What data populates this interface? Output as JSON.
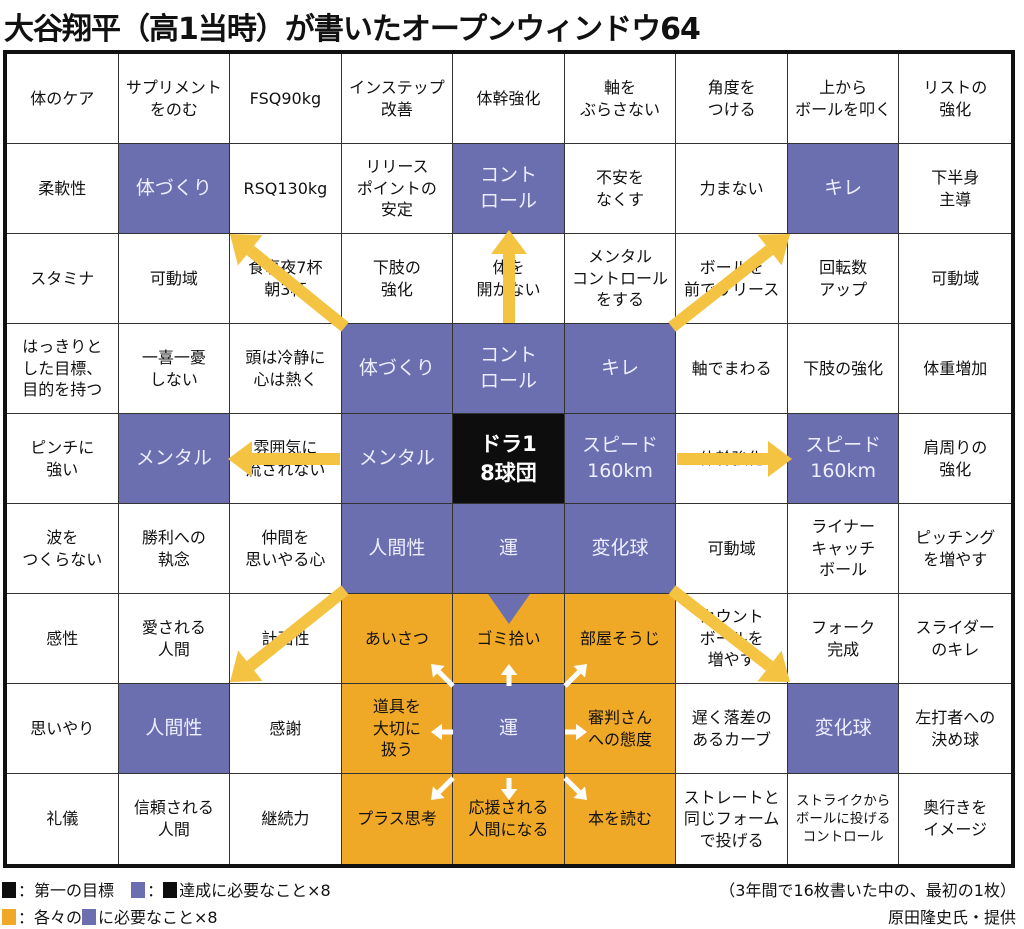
{
  "title": "大谷翔平（高1当時）が書いたオープンウィンドウ64",
  "colors": {
    "blue": "#6b6fb0",
    "black": "#0d0d0d",
    "orange": "#f0a827",
    "arrow": "#f5c342"
  },
  "grid": [
    [
      [
        "体のケア",
        "w"
      ],
      [
        "サプリメント\nをのむ",
        "w"
      ],
      [
        "FSQ90kg",
        "w"
      ],
      [
        "インステップ\n改善",
        "w"
      ],
      [
        "体幹強化",
        "w"
      ],
      [
        "軸を\nぶらさない",
        "w"
      ],
      [
        "角度を\nつける",
        "w"
      ],
      [
        "上から\nボールを叩く",
        "w"
      ],
      [
        "リストの\n強化",
        "w"
      ]
    ],
    [
      [
        "柔軟性",
        "w"
      ],
      [
        "体づくり",
        "b"
      ],
      [
        "RSQ130kg",
        "w"
      ],
      [
        "リリース\nポイントの\n安定",
        "w"
      ],
      [
        "コント\nロール",
        "b"
      ],
      [
        "不安を\nなくす",
        "w"
      ],
      [
        "力まない",
        "w"
      ],
      [
        "キレ",
        "b"
      ],
      [
        "下半身\n主導",
        "w"
      ]
    ],
    [
      [
        "スタミナ",
        "w"
      ],
      [
        "可動域",
        "w"
      ],
      [
        "食事夜7杯\n朝3杯",
        "w"
      ],
      [
        "下肢の\n強化",
        "w"
      ],
      [
        "体を\n開かない",
        "w"
      ],
      [
        "メンタル\nコントロール\nをする",
        "w"
      ],
      [
        "ボールを\n前でリリース",
        "w"
      ],
      [
        "回転数\nアップ",
        "w"
      ],
      [
        "可動域",
        "w"
      ]
    ],
    [
      [
        "はっきりと\nした目標、\n目的を持つ",
        "w"
      ],
      [
        "一喜一憂\nしない",
        "w"
      ],
      [
        "頭は冷静に\n心は熱く",
        "w"
      ],
      [
        "体づくり",
        "b"
      ],
      [
        "コント\nロール",
        "b"
      ],
      [
        "キレ",
        "b"
      ],
      [
        "軸でまわる",
        "w"
      ],
      [
        "下肢の強化",
        "w"
      ],
      [
        "体重増加",
        "w"
      ]
    ],
    [
      [
        "ピンチに\n強い",
        "w"
      ],
      [
        "メンタル",
        "b"
      ],
      [
        "雰囲気に\n流されない",
        "w"
      ],
      [
        "メンタル",
        "b"
      ],
      [
        "ドラ1\n8球団",
        "k"
      ],
      [
        "スピード\n160km",
        "b"
      ],
      [
        "体幹強化",
        "w"
      ],
      [
        "スピード\n160km",
        "b"
      ],
      [
        "肩周りの\n強化",
        "w"
      ]
    ],
    [
      [
        "波を\nつくらない",
        "w"
      ],
      [
        "勝利への\n執念",
        "w"
      ],
      [
        "仲間を\n思いやる心",
        "w"
      ],
      [
        "人間性",
        "b"
      ],
      [
        "運",
        "b"
      ],
      [
        "変化球",
        "b"
      ],
      [
        "可動域",
        "w"
      ],
      [
        "ライナー\nキャッチ\nボール",
        "w"
      ],
      [
        "ピッチング\nを増やす",
        "w"
      ]
    ],
    [
      [
        "感性",
        "w"
      ],
      [
        "愛される\n人間",
        "w"
      ],
      [
        "計画性",
        "w"
      ],
      [
        "あいさつ",
        "o"
      ],
      [
        "ゴミ拾い",
        "o"
      ],
      [
        "部屋そうじ",
        "o"
      ],
      [
        "カウント\nボールを\n増やす",
        "w"
      ],
      [
        "フォーク\n完成",
        "w"
      ],
      [
        "スライダー\nのキレ",
        "w"
      ]
    ],
    [
      [
        "思いやり",
        "w"
      ],
      [
        "人間性",
        "b"
      ],
      [
        "感謝",
        "w"
      ],
      [
        "道具を\n大切に\n扱う",
        "o"
      ],
      [
        "運",
        "b"
      ],
      [
        "審判さん\nへの態度",
        "o"
      ],
      [
        "遅く落差の\nあるカーブ",
        "w"
      ],
      [
        "変化球",
        "b"
      ],
      [
        "左打者への\n決め球",
        "w"
      ]
    ],
    [
      [
        "礼儀",
        "w"
      ],
      [
        "信頼される\n人間",
        "w"
      ],
      [
        "継続力",
        "w"
      ],
      [
        "プラス思考",
        "o"
      ],
      [
        "応援される\n人間になる",
        "o"
      ],
      [
        "本を読む",
        "o"
      ],
      [
        "ストレートと\n同じフォーム\nで投げる",
        "w"
      ],
      [
        "ストライクから\nボールに投げる\nコントロール",
        "w"
      ],
      [
        "奥行きを\nイメージ",
        "w"
      ]
    ]
  ],
  "legend": {
    "line1_a": "：第一の目標",
    "line1_b": "：",
    "line1_c": "達成に必要なこと×8",
    "line2_a": "：各々の",
    "line2_b": "に必要なこと×8",
    "note": "（3年間で16枚書いた中の、最初の1枚）",
    "credit": "原田隆史氏・提供"
  }
}
